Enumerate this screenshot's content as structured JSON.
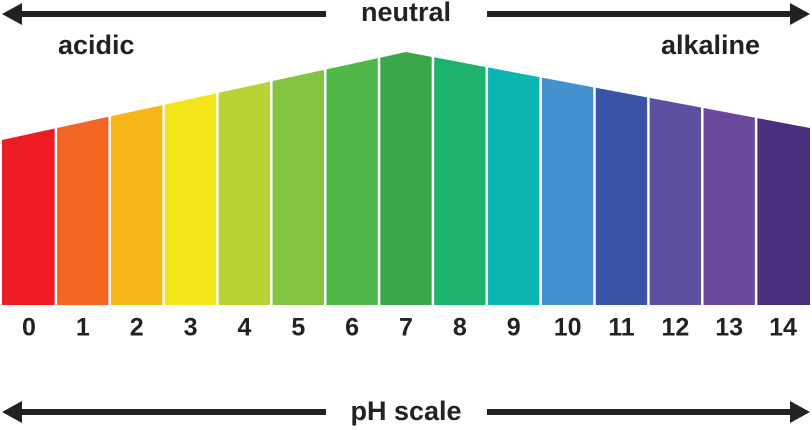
{
  "header": {
    "title": "neutral",
    "left_label": "acidic",
    "right_label": "alkaline"
  },
  "footer": {
    "title": "pH scale"
  },
  "segments": [
    {
      "label": 0,
      "color": "#ed1c24"
    },
    {
      "label": 1,
      "color": "#f26522"
    },
    {
      "label": 2,
      "color": "#f8b719"
    },
    {
      "label": 3,
      "color": "#f2e61b"
    },
    {
      "label": 4,
      "color": "#b9d235"
    },
    {
      "label": 5,
      "color": "#82c341"
    },
    {
      "label": 6,
      "color": "#50b848"
    },
    {
      "label": 7,
      "color": "#38a84a"
    },
    {
      "label": 8,
      "color": "#1eb36c"
    },
    {
      "label": 9,
      "color": "#0bb5b1"
    },
    {
      "label": 10,
      "color": "#4391cf"
    },
    {
      "label": 11,
      "color": "#3a55a5"
    },
    {
      "label": 12,
      "color": "#5b50a2"
    },
    {
      "label": 13,
      "color": "#6b499d"
    },
    {
      "label": 14,
      "color": "#4a2f7f"
    }
  ]
}
